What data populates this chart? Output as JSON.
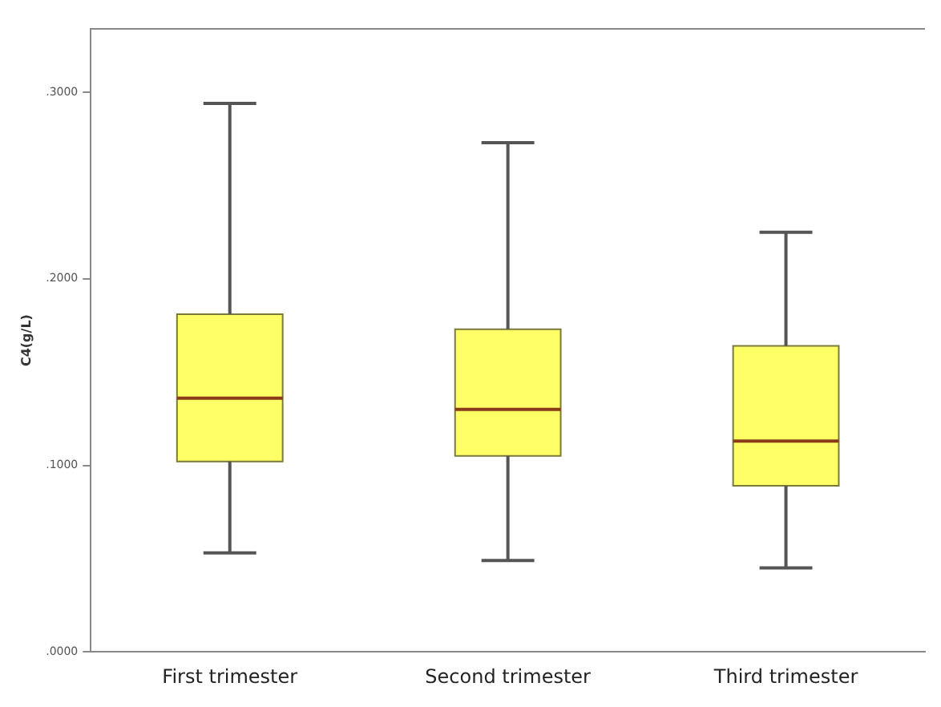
{
  "chart_data": {
    "type": "box",
    "ylabel": "C4(g/L)",
    "categories": [
      "First trimester",
      "Second trimester",
      "Third trimester"
    ],
    "series": [
      {
        "color": "#ffff66",
        "boxes": [
          {
            "low": 0.053,
            "q1": 0.102,
            "median": 0.136,
            "q3": 0.181,
            "high": 0.294
          },
          {
            "low": 0.049,
            "q1": 0.105,
            "median": 0.13,
            "q3": 0.173,
            "high": 0.273
          },
          {
            "low": 0.045,
            "q1": 0.089,
            "median": 0.113,
            "q3": 0.164,
            "high": 0.225
          }
        ]
      }
    ],
    "ylim": [
      0,
      0.334
    ],
    "yticks": [
      {
        "value": 0,
        "label": ".0000"
      },
      {
        "value": 0.1,
        "label": ".1000"
      },
      {
        "value": 0.2,
        "label": ".2000"
      },
      {
        "value": 0.3,
        "label": ".3000"
      }
    ],
    "grid": false,
    "legend": false
  }
}
